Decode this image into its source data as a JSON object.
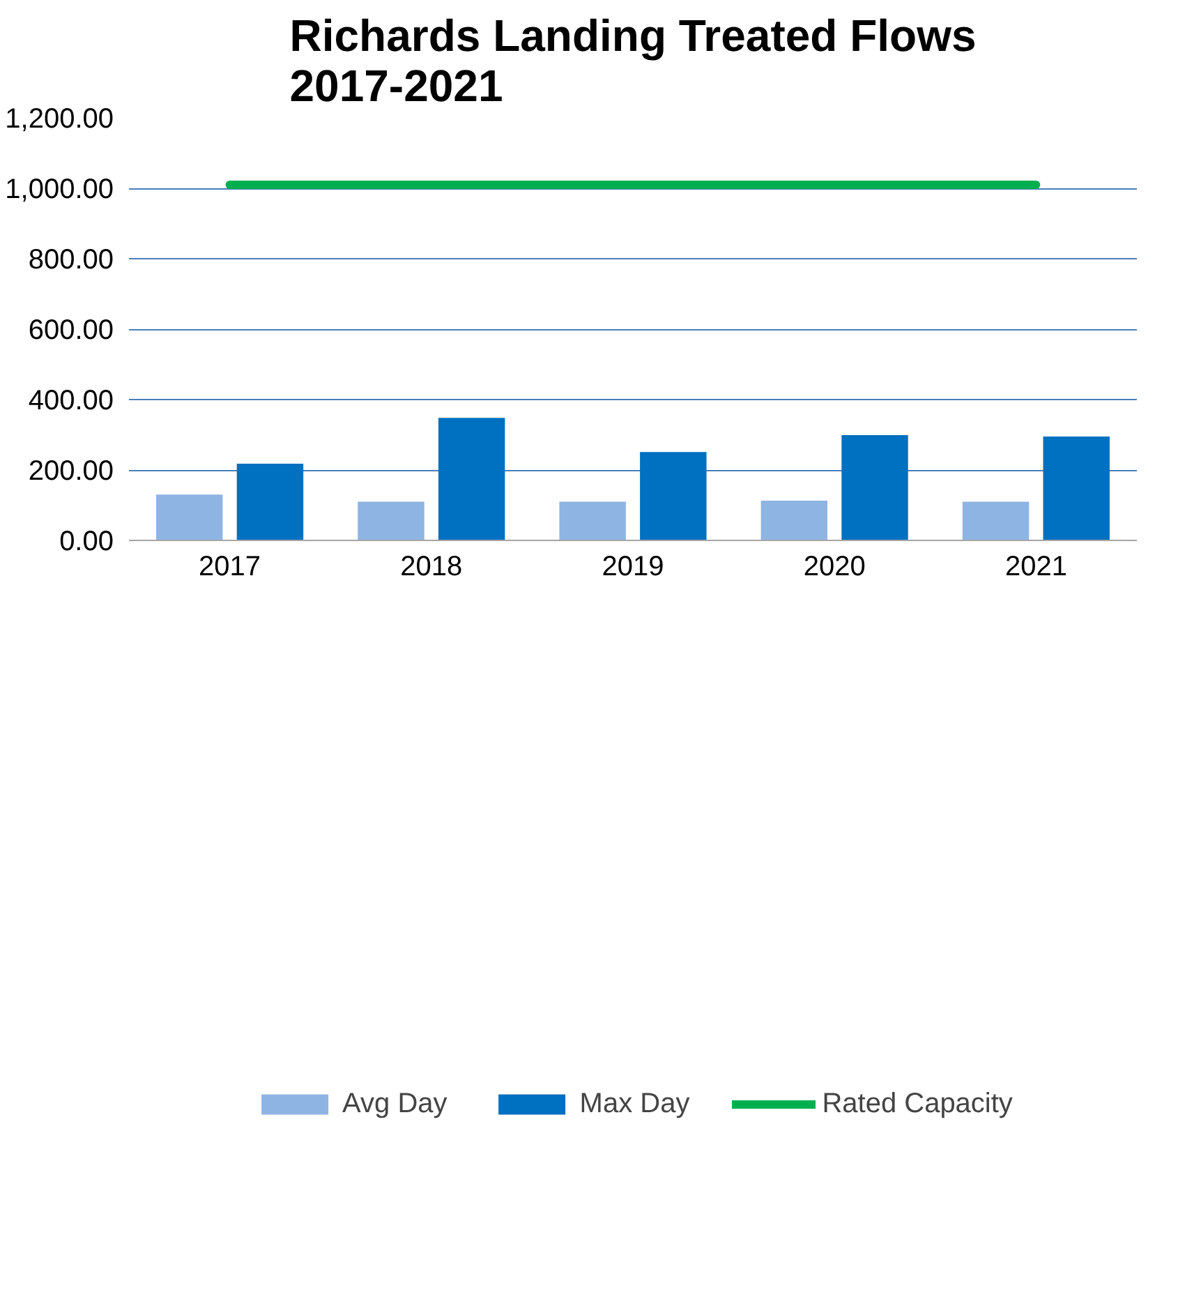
{
  "chart_data": {
    "type": "bar",
    "title": "Richards Landing Treated Flows\n2017-2021",
    "categories": [
      "2017",
      "2018",
      "2019",
      "2020",
      "2021"
    ],
    "series": [
      {
        "name": "Avg Day",
        "color": "#8eb4e3",
        "values": [
          130,
          110,
          110,
          113,
          110
        ]
      },
      {
        "name": "Max Day",
        "color": "#0070c0",
        "values": [
          218,
          348,
          251,
          299,
          295
        ]
      },
      {
        "name": "Rated Capacity",
        "color": "#00b050",
        "type": "line",
        "values": [
          1010,
          1010,
          1010,
          1010,
          1010
        ]
      }
    ],
    "ylim": [
      0,
      1200
    ],
    "yticks": [
      {
        "value": 0,
        "label": "0.00"
      },
      {
        "value": 200,
        "label": "200.00"
      },
      {
        "value": 400,
        "label": "400.00"
      },
      {
        "value": 600,
        "label": "600.00"
      },
      {
        "value": 800,
        "label": "800.00"
      },
      {
        "value": 1000,
        "label": "1,000.00"
      },
      {
        "value": 1200,
        "label": "1,200.00"
      }
    ],
    "grid": "y",
    "legend": "bottom"
  }
}
